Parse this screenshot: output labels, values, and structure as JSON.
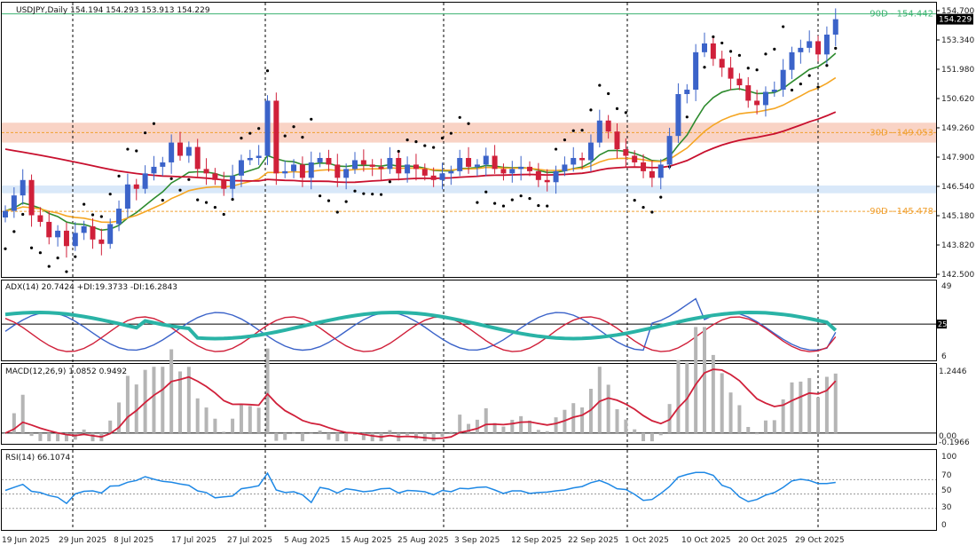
{
  "chart_data": [
    {
      "type": "candlestick",
      "title": "USDJPY,Daily  154.194 154.293 153.913 154.229",
      "symbol": "USDJPY",
      "timeframe": "Daily",
      "ohlc_last": [
        154.194,
        154.293,
        153.913,
        154.229
      ],
      "last_price_label": "154.229",
      "ylim": [
        142.5,
        154.95
      ],
      "y_ticks": [
        "154.700",
        "153.340",
        "151.980",
        "150.620",
        "149.260",
        "147.900",
        "146.540",
        "145.180",
        "143.820",
        "142.500"
      ],
      "x_ticks": [
        "19 Jun 2025",
        "29 Jun 2025",
        "8 Jul 2025",
        "17 Jul 2025",
        "27 Jul 2025",
        "5 Aug 2025",
        "15 Aug 2025",
        "25 Aug 2025",
        "3 Sep 2025",
        "12 Sep 2025",
        "22 Sep 2025",
        "1 Oct 2025",
        "10 Oct 2025",
        "20 Oct 2025",
        "29 Oct 2025"
      ],
      "levels": [
        {
          "label": "90D - 154.442",
          "value": 154.442,
          "color": "#3cb371"
        },
        {
          "label": "30D - 149.053",
          "value": 149.053,
          "color": "#f0a030"
        },
        {
          "label": "90D - 145.478",
          "value": 145.478,
          "color": "#f0a030"
        }
      ],
      "zones": [
        {
          "from": 148.6,
          "to": 149.5,
          "color": "#f7c8b6"
        },
        {
          "from": 146.3,
          "to": 146.65,
          "color": "#cfe2f7"
        }
      ],
      "closes": [
        145.5,
        146.2,
        146.9,
        145.3,
        145.0,
        144.3,
        144.6,
        143.9,
        144.5,
        144.8,
        144.2,
        144.0,
        144.9,
        145.6,
        146.7,
        146.5,
        147.2,
        147.5,
        147.7,
        148.6,
        148.0,
        148.4,
        147.4,
        147.2,
        146.9,
        146.5,
        147.1,
        147.8,
        147.9,
        148.0,
        150.5,
        147.2,
        147.3,
        147.6,
        147.0,
        147.7,
        147.9,
        147.6,
        147.0,
        147.4,
        147.8,
        147.6,
        147.5,
        147.4,
        147.9,
        147.2,
        147.6,
        147.4,
        147.1,
        146.9,
        147.2,
        147.3,
        147.9,
        147.5,
        147.6,
        148.0,
        147.4,
        147.2,
        147.4,
        147.5,
        147.3,
        146.9,
        146.8,
        147.3,
        147.6,
        147.9,
        147.8,
        148.6,
        149.6,
        149.1,
        148.3,
        148.0,
        147.7,
        147.3,
        147.0,
        147.6,
        148.9,
        150.8,
        151.0,
        152.7,
        153.1,
        152.4,
        152.0,
        151.5,
        151.2,
        150.5,
        150.3,
        150.9,
        151.0,
        151.9,
        152.7,
        152.9,
        153.2,
        152.6,
        153.5,
        154.2
      ],
      "ema_green_last": 152.2,
      "ema_orange_last": 150.7,
      "ema_red_last": 148.9
    },
    {
      "type": "line",
      "title": "ADX(14) 20.7424 +DI:19.3733 -DI:16.2843",
      "adx": 20.7424,
      "plus_di": 19.3733,
      "minus_di": 16.2843,
      "ylim": [
        0,
        49
      ],
      "y_ticks": [
        "49",
        "6"
      ],
      "level": 25,
      "level_label": "25",
      "series": [
        {
          "name": "ADX",
          "color": "#2ab3a6"
        },
        {
          "name": "+DI",
          "color": "#3b63c9"
        },
        {
          "name": "-DI",
          "color": "#d0203a"
        }
      ]
    },
    {
      "type": "bar",
      "title": "MACD(12,26,9) 1.0852 0.9492",
      "macd": 1.0852,
      "signal": 0.9492,
      "ylim": [
        -0.1966,
        1.2446
      ],
      "y_ticks": [
        "1.2446",
        "0.00",
        "-0.1966"
      ],
      "series": [
        {
          "name": "MACD",
          "color": "#b5b5b5"
        },
        {
          "name": "Signal",
          "color": "#d0203a"
        }
      ]
    },
    {
      "type": "line",
      "title": "RSI(14) 66.1074",
      "rsi": 66.1074,
      "ylim": [
        0,
        100
      ],
      "y_ticks": [
        "100",
        "70",
        "50",
        "30",
        "0"
      ],
      "series": [
        {
          "name": "RSI",
          "color": "#1e88e5"
        }
      ]
    }
  ]
}
